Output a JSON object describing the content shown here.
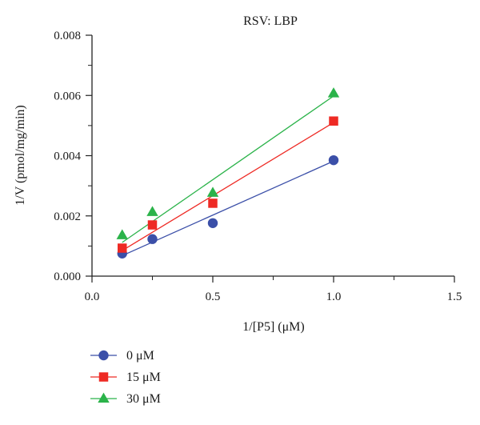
{
  "chart_data": {
    "type": "scatter",
    "title": "RSV: LBP",
    "xlabel": "1/[P5] (μM)",
    "ylabel": "1/V (pmol/mg/min)",
    "xlim": [
      0.0,
      1.5
    ],
    "ylim": [
      0.0,
      0.008
    ],
    "xticks": [
      "0.0",
      "0.5",
      "1.0",
      "1.5"
    ],
    "yticks": [
      "0.000",
      "0.002",
      "0.004",
      "0.006",
      "0.008"
    ],
    "grid": false,
    "legend_position": "bottom-left",
    "x": [
      0.125,
      0.25,
      0.5,
      1.0
    ],
    "series": [
      {
        "name": "0 μM",
        "marker": "circle",
        "color": "#3b4fa8",
        "values": [
          0.00075,
          0.00123,
          0.00176,
          0.00385
        ],
        "fit_line": [
          [
            0.125,
            0.00068
          ],
          [
            1.0,
            0.00382
          ]
        ]
      },
      {
        "name": "15 μM",
        "marker": "square",
        "color": "#ee2a24",
        "values": [
          0.00093,
          0.0017,
          0.00242,
          0.00515
        ],
        "fit_line": [
          [
            0.125,
            0.00085
          ],
          [
            1.0,
            0.0051
          ]
        ]
      },
      {
        "name": "30 μM",
        "marker": "triangle",
        "color": "#2bb34a",
        "values": [
          0.00136,
          0.00213,
          0.00277,
          0.00607
        ],
        "fit_line": [
          [
            0.125,
            0.00112
          ],
          [
            1.0,
            0.00598
          ]
        ]
      }
    ]
  }
}
